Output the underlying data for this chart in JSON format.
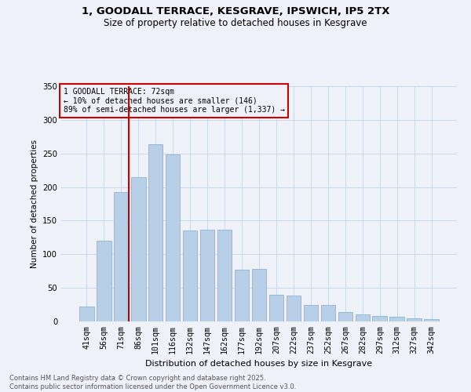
{
  "title_line1": "1, GOODALL TERRACE, KESGRAVE, IPSWICH, IP5 2TX",
  "title_line2": "Size of property relative to detached houses in Kesgrave",
  "xlabel": "Distribution of detached houses by size in Kesgrave",
  "ylabel": "Number of detached properties",
  "categories": [
    "41sqm",
    "56sqm",
    "71sqm",
    "86sqm",
    "101sqm",
    "116sqm",
    "132sqm",
    "147sqm",
    "162sqm",
    "177sqm",
    "192sqm",
    "207sqm",
    "222sqm",
    "237sqm",
    "252sqm",
    "267sqm",
    "282sqm",
    "297sqm",
    "312sqm",
    "327sqm",
    "342sqm"
  ],
  "values": [
    22,
    120,
    193,
    215,
    264,
    248,
    135,
    136,
    136,
    77,
    78,
    40,
    38,
    24,
    24,
    14,
    10,
    8,
    7,
    5,
    3
  ],
  "bar_color": "#b8cfe8",
  "bar_edge_color": "#8ab4d4",
  "grid_color": "#c8d8ea",
  "background_color": "#eef2f8",
  "annotation_box_color": "#cc0000",
  "vline_color": "#cc0000",
  "vline_x_index": 2,
  "annotation_text_line1": "1 GOODALL TERRACE: 72sqm",
  "annotation_text_line2": "← 10% of detached houses are smaller (146)",
  "annotation_text_line3": "89% of semi-detached houses are larger (1,337) →",
  "ylim": [
    0,
    350
  ],
  "yticks": [
    0,
    50,
    100,
    150,
    200,
    250,
    300,
    350
  ],
  "footer_line1": "Contains HM Land Registry data © Crown copyright and database right 2025.",
  "footer_line2": "Contains public sector information licensed under the Open Government Licence v3.0."
}
